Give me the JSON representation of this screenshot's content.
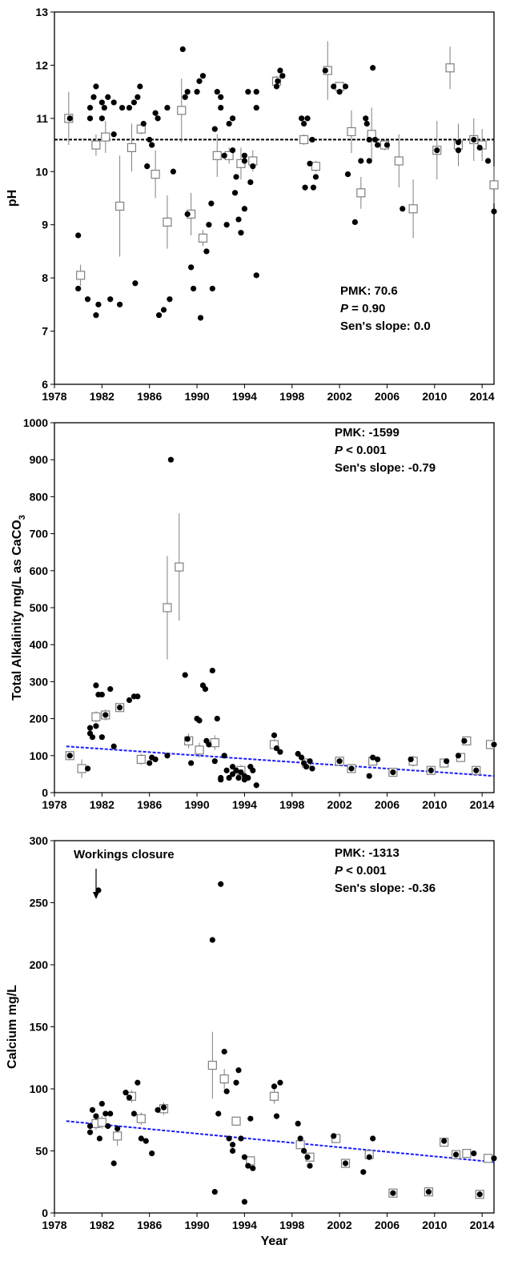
{
  "chart_data": [
    {
      "type": "scatter",
      "ylabel": "pH",
      "xlim": [
        1978,
        2015
      ],
      "xticks": [
        1978,
        1982,
        1986,
        1990,
        1994,
        1998,
        2002,
        2006,
        2010,
        2014
      ],
      "ylim": [
        6,
        13
      ],
      "yticks": [
        6,
        7,
        8,
        9,
        10,
        11,
        12,
        13
      ],
      "series": [
        {
          "color": "#000000",
          "marker": "circle",
          "x": [
            1979.3,
            1980,
            1980,
            1980.8,
            1981,
            1981,
            1981.3,
            1981.5,
            1981.5,
            1981.7,
            1982,
            1982,
            1982.2,
            1982.5,
            1982.7,
            1983,
            1983,
            1983.5,
            1983.7,
            1984.3,
            1984.7,
            1984.8,
            1985,
            1985.2,
            1985.5,
            1985.8,
            1986,
            1986.2,
            1986.5,
            1986.7,
            1986.8,
            1987.2,
            1987.5,
            1987.7,
            1988,
            1988.8,
            1989,
            1989.2,
            1989.2,
            1989.5,
            1989.7,
            1990,
            1990.2,
            1990.3,
            1990.5,
            1990.8,
            1991,
            1991.2,
            1991.3,
            1991.5,
            1991.7,
            1992,
            1992,
            1992.3,
            1992.5,
            1992.7,
            1993,
            1993,
            1993.2,
            1993.3,
            1993.5,
            1993.7,
            1994,
            1994,
            1994,
            1994.3,
            1994.5,
            1994.7,
            1995,
            1995,
            1995,
            1996.7,
            1996.8,
            1997,
            1997.2,
            1998.8,
            1999,
            1999.1,
            1999.3,
            1999.5,
            1999.7,
            1999.8,
            2000,
            2000.8,
            2001.5,
            2002,
            2002.5,
            2002.7,
            2003.3,
            2003.8,
            2004.2,
            2004.3,
            2004.5,
            2004.5,
            2004.8,
            2005,
            2005.2,
            2006,
            2007.3,
            2010.2,
            2012,
            2012,
            2013.3,
            2013.8,
            2014.5,
            2015
          ],
          "values": [
            11.0,
            8.8,
            7.8,
            7.6,
            11.2,
            11.0,
            11.4,
            11.6,
            7.3,
            7.5,
            11.3,
            11.0,
            11.2,
            11.4,
            7.6,
            11.3,
            10.7,
            7.5,
            11.2,
            11.2,
            11.3,
            7.9,
            11.4,
            11.6,
            10.9,
            10.1,
            10.6,
            10.5,
            11.1,
            11.0,
            7.3,
            7.4,
            11.2,
            7.6,
            10.0,
            12.3,
            11.4,
            11.5,
            9.2,
            8.2,
            7.8,
            11.5,
            11.7,
            7.25,
            11.8,
            8.5,
            9.0,
            9.4,
            7.8,
            10.8,
            11.5,
            11.4,
            11.2,
            10.3,
            9.0,
            10.9,
            11.0,
            10.4,
            9.6,
            9.9,
            9.1,
            8.85,
            9.3,
            10.2,
            10.3,
            11.5,
            9.8,
            10.1,
            11.2,
            11.5,
            8.05,
            11.6,
            11.7,
            11.9,
            11.8,
            11.0,
            10.9,
            9.7,
            11.0,
            10.15,
            10.6,
            9.7,
            9.9,
            11.9,
            11.6,
            11.5,
            11.6,
            9.95,
            9.05,
            10.2,
            11.0,
            10.9,
            10.6,
            10.2,
            11.95,
            10.6,
            10.5,
            10.5,
            9.3,
            10.4,
            10.4,
            10.55,
            10.6,
            10.45,
            10.2,
            9.25
          ]
        },
        {
          "color": "#808080",
          "marker": "square",
          "x": [
            1979.2,
            1980.2,
            1981.5,
            1982.3,
            1983.5,
            1984.5,
            1985.3,
            1986.5,
            1987.5,
            1988.7,
            1989.5,
            1990.5,
            1991.7,
            1992.7,
            1993.7,
            1994.7,
            1996.7,
            1999,
            2000,
            2001,
            2002,
            2003,
            2003.8,
            2004.7,
            2005.8,
            2007,
            2008.2,
            2010.2,
            2011.3,
            2012,
            2013.3,
            2014,
            2015
          ],
          "values": [
            11.0,
            8.05,
            10.5,
            10.65,
            9.35,
            10.45,
            10.8,
            9.95,
            9.05,
            11.15,
            9.2,
            8.75,
            10.3,
            10.3,
            10.15,
            10.2,
            11.7,
            10.6,
            10.1,
            11.9,
            11.6,
            10.75,
            9.6,
            10.7,
            10.5,
            10.2,
            9.3,
            10.4,
            11.95,
            10.5,
            10.6,
            10.5,
            9.75
          ],
          "errors": [
            0.5,
            0.2,
            0.2,
            0.3,
            0.95,
            0.45,
            0.1,
            0.45,
            0.5,
            0.6,
            0.4,
            0.15,
            0.4,
            0.15,
            0.3,
            0.2,
            0.1,
            0.1,
            0.1,
            0.55,
            0.05,
            0.4,
            0.3,
            0.5,
            0.1,
            0.5,
            0.55,
            0.55,
            0.4,
            0.4,
            0.4,
            0.3,
            0.35
          ]
        }
      ],
      "trend": {
        "x": [
          1978,
          2015
        ],
        "values": [
          10.6,
          10.6
        ],
        "color": "#000000"
      },
      "pmk": "PMK: 70.6",
      "p_symbol": "P",
      "p_value": " = 0.90",
      "sens_slope": "Sen's slope: 0.0"
    },
    {
      "type": "scatter",
      "ylabel": "Total Alkalinity mg/L as CaCO",
      "ylabel_sub": "3",
      "xlim": [
        1978,
        2015
      ],
      "xticks": [
        1978,
        1982,
        1986,
        1990,
        1994,
        1998,
        2002,
        2006,
        2010,
        2014
      ],
      "ylim": [
        0,
        1000
      ],
      "yticks": [
        0,
        100,
        200,
        300,
        400,
        500,
        600,
        700,
        800,
        900,
        1000
      ],
      "series": [
        {
          "color": "#000000",
          "marker": "circle",
          "x": [
            1979.3,
            1980.8,
            1981,
            1981,
            1981.2,
            1981.5,
            1981.5,
            1981.7,
            1982,
            1982,
            1982.3,
            1982.7,
            1983,
            1983.5,
            1984.3,
            1984.7,
            1985,
            1986,
            1986.2,
            1986.5,
            1987.5,
            1987.8,
            1989,
            1989.2,
            1989.5,
            1990,
            1990.2,
            1990.5,
            1990.7,
            1990.8,
            1991,
            1991.3,
            1991.5,
            1991.7,
            1992,
            1992,
            1992.3,
            1992.5,
            1992.7,
            1993,
            1993,
            1993.3,
            1993.5,
            1993.7,
            1994,
            1994,
            1994.3,
            1994.5,
            1994.7,
            1995,
            1996.5,
            1996.7,
            1997,
            1998.5,
            1998.8,
            1999,
            1999.2,
            1999.5,
            1999.7,
            2002,
            2003,
            2004.5,
            2004.8,
            2005.2,
            2006.5,
            2008,
            2009.7,
            2011,
            2012,
            2012.5,
            2013.5,
            2015
          ],
          "values": [
            100,
            65,
            175,
            160,
            150,
            290,
            180,
            265,
            265,
            150,
            210,
            280,
            125,
            230,
            250,
            260,
            260,
            80,
            95,
            90,
            100,
            900,
            318,
            145,
            80,
            200,
            195,
            290,
            280,
            140,
            130,
            330,
            85,
            200,
            35,
            40,
            100,
            60,
            40,
            70,
            50,
            60,
            40,
            55,
            35,
            45,
            40,
            70,
            60,
            20,
            155,
            120,
            110,
            105,
            95,
            80,
            70,
            85,
            65,
            85,
            65,
            45,
            95,
            90,
            55,
            90,
            60,
            85,
            100,
            140,
            60,
            130
          ]
        },
        {
          "color": "#808080",
          "marker": "square",
          "x": [
            1979.3,
            1980.3,
            1981.5,
            1982.3,
            1983.5,
            1985.3,
            1987.5,
            1988.5,
            1989.3,
            1990.2,
            1991.5,
            1993.7,
            1996.5,
            1999.2,
            2002,
            2003,
            2004.8,
            2006.5,
            2008.2,
            2009.7,
            2010.8,
            2012.2,
            2012.7,
            2013.5,
            2014.7
          ],
          "values": [
            100,
            65,
            205,
            210,
            230,
            90,
            500,
            610,
            140,
            115,
            135,
            60,
            130,
            80,
            85,
            65,
            85,
            55,
            85,
            60,
            80,
            95,
            140,
            60,
            130
          ],
          "errors": [
            5,
            25,
            15,
            15,
            10,
            15,
            140,
            145,
            20,
            20,
            20,
            15,
            15,
            10,
            10,
            5,
            10,
            5,
            15,
            5,
            5,
            5,
            5,
            5,
            5
          ]
        }
      ],
      "trend": {
        "x": [
          1979,
          2015
        ],
        "values": [
          125,
          45
        ],
        "color": "#1a1aff"
      },
      "pmk": "PMK: -1599",
      "p_symbol": "P",
      "p_value": " < 0.001",
      "sens_slope": "Sen's slope: -0.79"
    },
    {
      "type": "scatter",
      "ylabel": "Calcium mg/L",
      "xlabel": "Year",
      "xlim": [
        1978,
        2015
      ],
      "xticks": [
        1978,
        1982,
        1986,
        1990,
        1994,
        1998,
        2002,
        2006,
        2010,
        2014
      ],
      "ylim": [
        0,
        300
      ],
      "yticks": [
        0,
        50,
        100,
        150,
        200,
        250,
        300
      ],
      "series": [
        {
          "color": "#000000",
          "marker": "circle",
          "x": [
            1981,
            1981,
            1981.2,
            1981.5,
            1981.7,
            1981.8,
            1982,
            1982.3,
            1982.5,
            1982.7,
            1983,
            1983.3,
            1984,
            1984.3,
            1984.7,
            1985,
            1985.3,
            1985.7,
            1986.2,
            1986.7,
            1987.2,
            1991.3,
            1991.5,
            1991.8,
            1992,
            1992.3,
            1992.5,
            1992.7,
            1993,
            1993,
            1993.3,
            1993.5,
            1993.7,
            1994,
            1994,
            1994.3,
            1994.5,
            1994.7,
            1996.5,
            1996.7,
            1997,
            1998.5,
            1998.7,
            1999,
            1999.3,
            1999.5,
            2001.5,
            2002.5,
            2004,
            2004.5,
            2004.8,
            2006.5,
            2009.5,
            2010.8,
            2011.8,
            2013.3,
            2013.8,
            2015
          ],
          "values": [
            65,
            70,
            83,
            78,
            260,
            60,
            88,
            80,
            70,
            80,
            40,
            68,
            97,
            93,
            80,
            105,
            60,
            58,
            48,
            83,
            85,
            220,
            17,
            80,
            265,
            130,
            98,
            60,
            50,
            55,
            105,
            115,
            60,
            45,
            9,
            38,
            76,
            36,
            102,
            78,
            105,
            72,
            60,
            50,
            45,
            38,
            62,
            40,
            33,
            45,
            60,
            16,
            17,
            58,
            47,
            48,
            15,
            44
          ]
        },
        {
          "color": "#808080",
          "marker": "square",
          "x": [
            1981.5,
            1982,
            1983.3,
            1984.5,
            1985.3,
            1987.2,
            1991.3,
            1992.3,
            1993.3,
            1994.5,
            1996.5,
            1998.7,
            1999.5,
            2001.7,
            2002.5,
            2004.5,
            2006.5,
            2009.5,
            2010.8,
            2011.8,
            2012.7,
            2013.8,
            2014.5
          ],
          "values": [
            72,
            73,
            62,
            94,
            76,
            84,
            119,
            108,
            74,
            42,
            94,
            55,
            45,
            60,
            40,
            47,
            16,
            17,
            57,
            47,
            48,
            15,
            44
          ],
          "errors": [
            5,
            5,
            8,
            5,
            5,
            5,
            27,
            8,
            3,
            3,
            6,
            3,
            3,
            3,
            2,
            3,
            2,
            2,
            2,
            2,
            2,
            2,
            2
          ]
        }
      ],
      "trend": {
        "x": [
          1979,
          2015
        ],
        "values": [
          74,
          41
        ],
        "color": "#1a1aff"
      },
      "pmk": "PMK: -1313",
      "p_symbol": "P",
      "p_value": " < 0.001",
      "sens_slope": "Sen's slope: -0.36",
      "arrow_label": "Workings closure"
    }
  ]
}
